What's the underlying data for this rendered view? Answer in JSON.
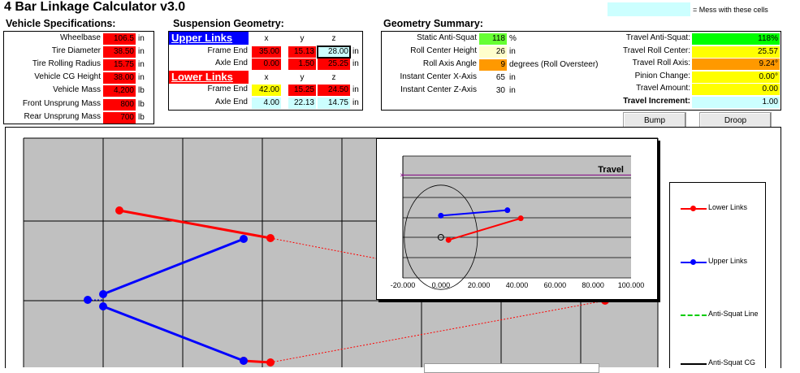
{
  "app": {
    "title": "4 Bar Linkage Calculator v3.0",
    "legend_note": "= Mess with these cells"
  },
  "vehicle": {
    "heading": "Vehicle Specifications:",
    "rows": [
      {
        "label": "Wheelbase",
        "value": "106.5",
        "unit": "in"
      },
      {
        "label": "Tire Diameter",
        "value": "38.50",
        "unit": "in"
      },
      {
        "label": "Tire Rolling Radius",
        "value": "15.75",
        "unit": "in"
      },
      {
        "label": "Vehicle CG Height",
        "value": "38.00",
        "unit": "in"
      },
      {
        "label": "Vehicle Mass",
        "value": "4,200",
        "unit": "lb"
      },
      {
        "label": "Front Unsprung Mass",
        "value": "800",
        "unit": "lb"
      },
      {
        "label": "Rear Unsprung Mass",
        "value": "700",
        "unit": "lb"
      }
    ]
  },
  "suspension": {
    "heading": "Suspension Geometry:",
    "upper_label": "Upper Links",
    "lower_label": "Lower Links",
    "cols": [
      "x",
      "y",
      "z"
    ],
    "upper": [
      {
        "label": "Frame End",
        "x": "35.00",
        "y": "15.13",
        "z": "28.00",
        "unit": "in"
      },
      {
        "label": "Axle End",
        "x": "0.00",
        "y": "1.50",
        "z": "25.25",
        "unit": "in"
      }
    ],
    "lower": [
      {
        "label": "Frame End",
        "x": "42.00",
        "y": "15.25",
        "z": "24.50",
        "unit": "in"
      },
      {
        "label": "Axle End",
        "x": "4.00",
        "y": "22.13",
        "z": "14.75",
        "unit": "in"
      }
    ]
  },
  "summary": {
    "heading": "Geometry Summary:",
    "left": [
      {
        "label": "Static Anti-Squat",
        "value": "118",
        "unit": "%"
      },
      {
        "label": "Roll Center Height",
        "value": "26",
        "unit": "in"
      },
      {
        "label": "Roll Axis Angle",
        "value": "9",
        "unit": "degrees (Roll Oversteer)"
      },
      {
        "label": "Instant Center X-Axis",
        "value": "65",
        "unit": "in"
      },
      {
        "label": "Instant Center Z-Axis",
        "value": "30",
        "unit": "in"
      }
    ],
    "right": [
      {
        "label": "Travel Anti-Squat:",
        "value": "118%"
      },
      {
        "label": "Travel Roll Center:",
        "value": "25.57"
      },
      {
        "label": "Travel Roll Axis:",
        "value": "9.24°"
      },
      {
        "label": "Pinion Change:",
        "value": "0.00°"
      },
      {
        "label": "Travel Amount:",
        "value": "0.00"
      },
      {
        "label": "Travel Increment:",
        "value": "1.00"
      }
    ]
  },
  "buttons": {
    "bump": "Bump",
    "droop": "Droop"
  },
  "chart_data": [
    {
      "type": "line",
      "title": "",
      "series": [
        {
          "name": "Lower Links",
          "color": "#ff0000",
          "points": [
            [
              -42,
              24.5
            ],
            [
              -4,
              14.75
            ]
          ],
          "style": "solid"
        },
        {
          "name": "Lower Links",
          "color": "#ff0000",
          "points": [
            [
              -42,
              -24.5
            ],
            [
              -4,
              -14.75
            ]
          ],
          "style": "solid"
        },
        {
          "name": "Upper Links",
          "color": "#0000ff",
          "points": [
            [
              -35,
              14.13
            ],
            [
              -5,
              -14.13
            ]
          ],
          "style": "solid"
        },
        {
          "name": "Upper Links",
          "color": "#0000ff",
          "points": [
            [
              -35,
              -14.13
            ],
            [
              -5,
              14.13
            ]
          ],
          "style": "solid"
        },
        {
          "name": "Anti-Squat Line",
          "color": "#00cc00",
          "points": [],
          "style": "dashed"
        }
      ],
      "legend": [
        "Lower Links",
        "Upper Links",
        "Anti-Squat Line",
        "Anti-Squat CG"
      ]
    },
    {
      "type": "line",
      "title": "Travel",
      "x_ticks": [
        "-20.000",
        "0.000",
        "20.000",
        "40.000",
        "60.000",
        "80.000",
        "100.000"
      ],
      "xlim": [
        -20,
        100
      ],
      "ylim": [
        -15,
        30
      ],
      "series": [
        {
          "name": "Upper Links",
          "color": "#0000ff",
          "points": [
            [
              0,
              8
            ],
            [
              35,
              10
            ]
          ]
        },
        {
          "name": "Lower Links",
          "color": "#ff0000",
          "points": [
            [
              4,
              -1
            ],
            [
              42,
              7
            ]
          ]
        },
        {
          "name": "Anti-Squat Line",
          "color": "#800080",
          "points": [
            [
              -20,
              23
            ],
            [
              100,
              23
            ]
          ]
        }
      ],
      "circle": {
        "center": [
          0,
          0
        ],
        "radius": 19.25
      }
    }
  ]
}
